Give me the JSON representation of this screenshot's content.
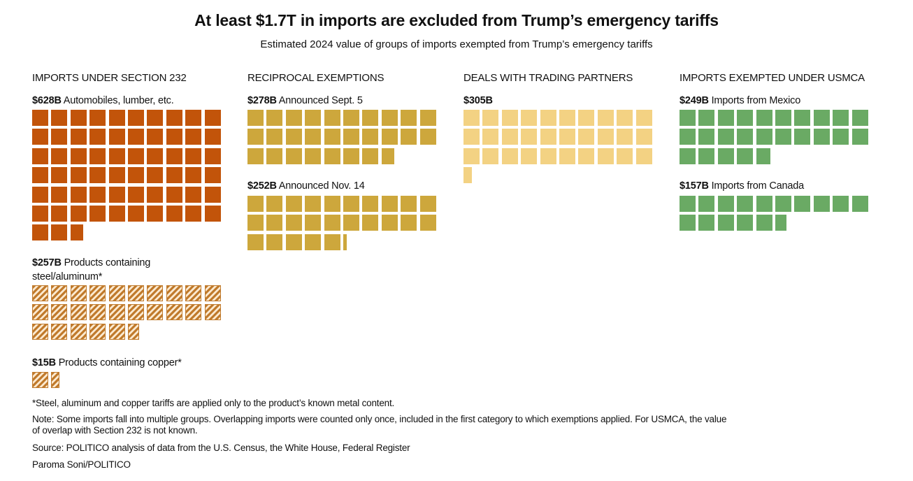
{
  "title": "At least $1.7T in imports are excluded from Trump’s emergency tariffs",
  "subtitle": "Estimated 2024 value of groups of imports exempted from Trump’s emergency tariffs",
  "chart_data": {
    "type": "waffle",
    "unit_value_billions": 10,
    "columns": [
      {
        "header": "IMPORTS UNDER SECTION 232",
        "groups": [
          {
            "amount": "$628B",
            "desc": "Automobiles, lumber, etc.",
            "value": 628,
            "color": "#c2540a",
            "pattern": "solid"
          },
          {
            "amount": "$257B",
            "desc": "Products containing steel/aluminum*",
            "value": 257,
            "color": "#c07a2c",
            "pattern": "hatched"
          },
          {
            "amount": "$15B",
            "desc": "Products containing copper*",
            "value": 15,
            "color": "#c07a2c",
            "pattern": "hatched"
          }
        ]
      },
      {
        "header": "RECIPROCAL EXEMPTIONS",
        "groups": [
          {
            "amount": "$278B",
            "desc": "Announced Sept. 5",
            "value": 278,
            "color": "#cda73c",
            "pattern": "solid"
          },
          {
            "amount": "$252B",
            "desc": "Announced Nov. 14",
            "value": 252,
            "color": "#cda73c",
            "pattern": "solid"
          }
        ]
      },
      {
        "header": "DEALS WITH TRADING PARTNERS",
        "groups": [
          {
            "amount": "$305B",
            "desc": "",
            "value": 305,
            "color": "#f3d283",
            "pattern": "solid"
          }
        ]
      },
      {
        "header": "IMPORTS EXEMPTED UNDER USMCA",
        "groups": [
          {
            "amount": "$249B",
            "desc": "Imports from Mexico",
            "value": 249,
            "color": "#6aaa64",
            "pattern": "solid"
          },
          {
            "amount": "$157B",
            "desc": "Imports from Canada",
            "value": 157,
            "color": "#6aaa64",
            "pattern": "solid"
          }
        ]
      }
    ]
  },
  "footer": {
    "footnote": "*Steel, aluminum and copper tariffs are applied only to the product’s known metal content.",
    "note": "Note: Some imports fall into multiple groups. Overlapping imports were counted only once, included in the first category to which exemptions applied. For USMCA, the value of overlap with Section 232 is not known.",
    "source": "Source: POLITICO analysis of data from the U.S. Census, the White House, Federal Register",
    "credit": "Paroma Soni/POLITICO"
  }
}
